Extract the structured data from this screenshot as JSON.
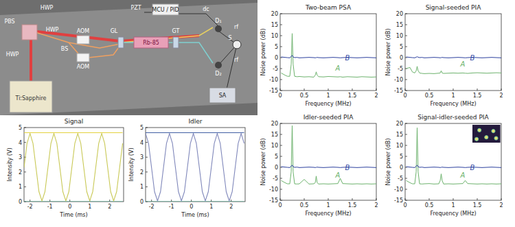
{
  "diagram": {
    "labels": [
      "HWP",
      "PBS",
      "HWP",
      "HWP",
      "BS",
      "AOM",
      "AOM",
      "PZT",
      "MCU / PID",
      "GL",
      "Rb-85",
      "GT",
      "dc",
      "D₁",
      "rf",
      "S",
      "D₂",
      "rf",
      "SA",
      "Ti:Sapphire"
    ]
  },
  "chart_data": [
    {
      "type": "line",
      "title": "Signal",
      "x_label": "Time (ms)",
      "y_label": "Intensity (V)",
      "xlim": [
        -2.3,
        2.7
      ],
      "xticks": [
        -2,
        -1,
        0,
        1,
        2
      ],
      "ylim": [
        0,
        5
      ],
      "yticks": [
        0,
        1,
        2,
        3,
        4,
        5
      ],
      "grid": false,
      "x": [
        -2.3,
        -2.15,
        -2,
        -1.85,
        -1.7,
        -1.55,
        -1.4,
        -1.25,
        -1.1,
        -0.95,
        -0.8,
        -0.65,
        -0.5,
        -0.35,
        -0.2,
        -0.05,
        0.1,
        0.25,
        0.4,
        0.55,
        0.7,
        0.85,
        1,
        1.15,
        1.3,
        1.45,
        1.6,
        1.75,
        1.9,
        2.05,
        2.2,
        2.35,
        2.5,
        2.65
      ],
      "series": [
        {
          "color": "#c9c957",
          "values": [
            2.3,
            3.93,
            4.6,
            3.93,
            2.3,
            0.67,
            0.05,
            0.67,
            2.3,
            3.93,
            4.6,
            3.93,
            2.3,
            0.67,
            0.05,
            0.67,
            2.3,
            3.93,
            4.6,
            3.93,
            2.3,
            0.67,
            0.05,
            0.67,
            2.3,
            3.93,
            4.6,
            3.93,
            2.3,
            0.67,
            0.05,
            0.67,
            2.3,
            3.93
          ]
        },
        {
          "color": "#e2d13c",
          "values": [
            4.65,
            4.65,
            4.65,
            4.65,
            4.65,
            4.65,
            4.65,
            4.65,
            4.65,
            4.65,
            4.65,
            4.65,
            4.65,
            4.65,
            4.65,
            4.65,
            4.65,
            4.65,
            4.65,
            4.65,
            4.65,
            4.65,
            4.65,
            4.65,
            4.65,
            4.65,
            4.65,
            4.65,
            4.65,
            4.65,
            4.65,
            4.65,
            4.65,
            4.65
          ]
        },
        {
          "color": "#5cc2a4",
          "values": [
            0,
            0,
            0,
            0,
            0,
            0,
            0,
            0,
            0,
            0,
            0,
            0,
            0,
            0,
            0,
            0,
            0,
            0,
            0,
            0,
            0,
            0,
            0,
            0,
            0,
            0,
            0,
            0,
            0,
            0,
            0,
            0,
            0,
            0
          ]
        }
      ]
    },
    {
      "type": "line",
      "title": "Idler",
      "x_label": "Time (ms)",
      "y_label": "Intensity (V)",
      "xlim": [
        -2.3,
        2.7
      ],
      "xticks": [
        -2,
        -1,
        0,
        1,
        2
      ],
      "ylim": [
        0,
        5
      ],
      "yticks": [
        0,
        1,
        2,
        3,
        4,
        5
      ],
      "grid": false,
      "x": [
        -2.3,
        -2.15,
        -2,
        -1.85,
        -1.7,
        -1.55,
        -1.4,
        -1.25,
        -1.1,
        -0.95,
        -0.8,
        -0.65,
        -0.5,
        -0.35,
        -0.2,
        -0.05,
        0.1,
        0.25,
        0.4,
        0.55,
        0.7,
        0.85,
        1,
        1.15,
        1.3,
        1.45,
        1.6,
        1.75,
        1.9,
        2.05,
        2.2,
        2.35,
        2.5,
        2.65
      ],
      "series": [
        {
          "color": "#8088bb",
          "values": [
            4.6,
            3.93,
            2.3,
            0.67,
            0.05,
            0.67,
            2.3,
            3.93,
            4.6,
            3.93,
            2.3,
            0.67,
            0.05,
            0.67,
            2.3,
            3.93,
            4.6,
            3.93,
            2.3,
            0.67,
            0.05,
            0.67,
            2.3,
            3.93,
            4.6,
            3.93,
            2.3,
            0.67,
            0.05,
            0.67,
            2.3,
            3.93,
            4.6,
            3.93
          ]
        },
        {
          "color": "#3f5ea3",
          "values": [
            4.65,
            4.65,
            4.65,
            4.65,
            4.65,
            4.65,
            4.65,
            4.65,
            4.65,
            4.65,
            4.65,
            4.65,
            4.65,
            4.65,
            4.65,
            4.65,
            4.65,
            4.65,
            4.65,
            4.65,
            4.65,
            4.65,
            4.65,
            4.65,
            4.65,
            4.65,
            4.65,
            4.65,
            4.65,
            4.65,
            4.65,
            4.65,
            4.65,
            4.65
          ]
        },
        {
          "color": "#5cc2a4",
          "values": [
            0,
            0,
            0,
            0,
            0,
            0,
            0,
            0,
            0,
            0,
            0,
            0,
            0,
            0,
            0,
            0,
            0,
            0,
            0,
            0,
            0,
            0,
            0,
            0,
            0,
            0,
            0,
            0,
            0,
            0,
            0,
            0,
            0,
            0
          ]
        }
      ]
    },
    {
      "type": "line",
      "title": "Two-beam PSA",
      "x_label": "Frequency (MHz)",
      "y_label": "Noise power (dB)",
      "xlim": [
        0,
        2
      ],
      "xticks": [
        0,
        0.5,
        1,
        1.5,
        2
      ],
      "ylim": [
        -15,
        20
      ],
      "yticks": [
        -15,
        -10,
        -5,
        0,
        5,
        10,
        15,
        20
      ],
      "grid": false,
      "x": [
        0.02,
        0.1,
        0.15,
        0.2,
        0.23,
        0.25,
        0.27,
        0.3,
        0.35,
        0.4,
        0.5,
        0.6,
        0.7,
        0.73,
        0.75,
        0.77,
        0.8,
        0.9,
        1.0,
        1.1,
        1.2,
        1.25,
        1.3,
        1.4,
        1.5,
        1.6,
        1.7,
        1.8,
        1.9,
        2.0
      ],
      "series": [
        {
          "name": "A",
          "color": "#6cb26c",
          "values": [
            -7,
            -8,
            -8.5,
            -8.5,
            -3,
            11,
            -3,
            -8.5,
            -8.7,
            -8.6,
            -8.8,
            -8.7,
            -8.9,
            -8,
            -6.5,
            -8,
            -8.7,
            -8.8,
            -8.6,
            -8.7,
            -8.8,
            -8.7,
            -8.9,
            -8.7,
            -8.8,
            -8.9,
            -8.7,
            -8.8,
            -8.9,
            -8.8
          ]
        },
        {
          "name": "B",
          "color": "#2b3f9e",
          "values": [
            0.3,
            0.1,
            0,
            -0.1,
            0.5,
            1,
            0.3,
            0,
            0.1,
            -0.1,
            0,
            0.1,
            0,
            -0.1,
            0,
            0.1,
            0,
            -0.1,
            0,
            0.1,
            0,
            -0.1,
            0,
            0.1,
            0,
            -0.1,
            0,
            0.1,
            0,
            -0.1
          ]
        }
      ]
    },
    {
      "type": "line",
      "title": "Signal-seeded PIA",
      "x_label": "Frequency (MHz)",
      "y_label": "Noise power (dB)",
      "xlim": [
        0,
        2
      ],
      "xticks": [
        0,
        0.5,
        1,
        1.5,
        2
      ],
      "ylim": [
        -15,
        20
      ],
      "yticks": [
        -15,
        -10,
        -5,
        0,
        5,
        10,
        15,
        20
      ],
      "grid": false,
      "x": [
        0.02,
        0.1,
        0.15,
        0.2,
        0.23,
        0.25,
        0.27,
        0.3,
        0.35,
        0.4,
        0.5,
        0.6,
        0.7,
        0.73,
        0.75,
        0.77,
        0.8,
        0.9,
        1.0,
        1.1,
        1.2,
        1.25,
        1.3,
        1.4,
        1.5,
        1.6,
        1.7,
        1.8,
        1.9,
        2.0
      ],
      "series": [
        {
          "name": "A",
          "color": "#6cb26c",
          "values": [
            -5,
            -4.5,
            -6.5,
            -7,
            -6,
            -4,
            -6,
            -7,
            -7.2,
            -7.3,
            -7.2,
            -7.3,
            -7.1,
            -7,
            -6,
            -7,
            -7.2,
            -7.1,
            -7,
            -7.1,
            -7,
            -7.1,
            -7.2,
            -7,
            -6.9,
            -7,
            -7.1,
            -7,
            -6.9,
            -7
          ]
        },
        {
          "name": "B",
          "color": "#2b3f9e",
          "values": [
            0.3,
            0.1,
            0,
            -0.1,
            0.2,
            0.4,
            0.2,
            0,
            0.1,
            -0.1,
            0,
            0.1,
            0,
            -0.1,
            0,
            0.1,
            0,
            -0.1,
            0,
            0.1,
            0,
            -0.1,
            0,
            0.1,
            0,
            -0.1,
            0,
            0.1,
            0,
            -0.1
          ]
        }
      ]
    },
    {
      "type": "line",
      "title": "Idler-seeded PIA",
      "x_label": "Frequency (MHz)",
      "y_label": "Noise power (dB)",
      "xlim": [
        0,
        2
      ],
      "xticks": [
        0,
        0.5,
        1,
        1.5,
        2
      ],
      "ylim": [
        -15,
        20
      ],
      "yticks": [
        -15,
        -10,
        -5,
        0,
        5,
        10,
        15,
        20
      ],
      "grid": false,
      "x": [
        0.02,
        0.1,
        0.15,
        0.2,
        0.23,
        0.25,
        0.27,
        0.3,
        0.35,
        0.4,
        0.5,
        0.6,
        0.7,
        0.73,
        0.75,
        0.77,
        0.8,
        0.9,
        1.0,
        1.1,
        1.2,
        1.25,
        1.3,
        1.4,
        1.5,
        1.6,
        1.7,
        1.8,
        1.9,
        2.0
      ],
      "series": [
        {
          "name": "A",
          "color": "#6cb26c",
          "values": [
            -6,
            -7,
            -7.5,
            -7.5,
            -2,
            19,
            -2,
            -7.5,
            -7.6,
            -7.5,
            -5.5,
            -7.6,
            -7.5,
            -7,
            -4,
            -7,
            -7.6,
            -7.5,
            -7.6,
            -7.5,
            -7.4,
            -5,
            -7.4,
            -7.5,
            -7.6,
            -7.5,
            -7.6,
            -7.5,
            -7.6,
            -7.5
          ]
        },
        {
          "name": "B",
          "color": "#2b3f9e",
          "values": [
            0.3,
            0.1,
            0,
            -0.1,
            0.5,
            1,
            0.3,
            0,
            0.1,
            -0.1,
            0,
            0.1,
            0,
            -0.1,
            0,
            0.1,
            0,
            -0.1,
            0,
            0.1,
            0,
            -0.1,
            0,
            0.1,
            0,
            -0.1,
            0,
            0.1,
            0,
            -0.1
          ]
        }
      ]
    },
    {
      "type": "line",
      "title": "Signal-idler-seeded PIA",
      "x_label": "Frequency (MHz)",
      "y_label": "Noise power (dB)",
      "xlim": [
        0,
        2
      ],
      "xticks": [
        0,
        0.5,
        1,
        1.5,
        2
      ],
      "ylim": [
        -15,
        20
      ],
      "yticks": [
        -15,
        -10,
        -5,
        0,
        5,
        10,
        15,
        20
      ],
      "grid": false,
      "x": [
        0.02,
        0.1,
        0.15,
        0.2,
        0.23,
        0.25,
        0.27,
        0.3,
        0.35,
        0.4,
        0.5,
        0.6,
        0.7,
        0.73,
        0.75,
        0.77,
        0.8,
        0.9,
        1.0,
        1.1,
        1.2,
        1.25,
        1.3,
        1.4,
        1.5,
        1.6,
        1.7,
        1.8,
        1.9,
        2.0
      ],
      "series": [
        {
          "name": "A",
          "color": "#6cb26c",
          "values": [
            -6,
            -7,
            -7.5,
            -7.5,
            -2,
            18,
            -2,
            -7.5,
            -7.6,
            -7.5,
            -7.4,
            -7.6,
            -7.5,
            -6,
            -3,
            -6,
            -7.6,
            -7.5,
            -7.6,
            -7.5,
            -7.4,
            -6,
            -7.4,
            -7.5,
            -7.6,
            -7.5,
            -7.6,
            -7.5,
            -7.6,
            -7.5
          ]
        },
        {
          "name": "B",
          "color": "#2b3f9e",
          "values": [
            0.3,
            0.1,
            0,
            -0.1,
            0.5,
            1,
            0.3,
            0,
            0.1,
            -0.1,
            0,
            0.1,
            0,
            -0.1,
            0,
            0.1,
            0,
            -0.1,
            0,
            0.1,
            0,
            -0.1,
            0,
            0.1,
            0,
            -0.1,
            0,
            0.1,
            0,
            -0.1
          ]
        }
      ]
    }
  ]
}
